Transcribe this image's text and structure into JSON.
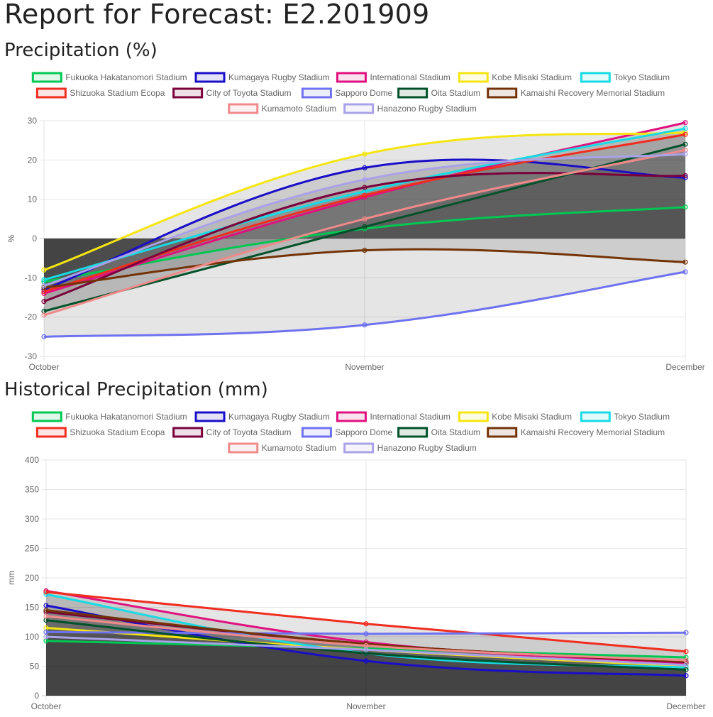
{
  "report": {
    "title": "Report for Forecast: E2.201909",
    "section1_title": "Precipitation (%)",
    "section2_title": "Historical Precipitation (mm)"
  },
  "chart_data": [
    {
      "type": "line",
      "fill": true,
      "categories": [
        "October",
        "November",
        "December"
      ],
      "ylabel": "%",
      "ylim": [
        -30,
        30
      ],
      "yticks": [
        30,
        20,
        10,
        0,
        -10,
        -20,
        -30
      ],
      "grid": true,
      "legend_position": "top",
      "series": [
        {
          "name": "Fukuoka Hakatanomori Stadium",
          "color": "#00c853",
          "values": [
            -11,
            2.5,
            8
          ]
        },
        {
          "name": "Kumagaya Rugby Stadium",
          "color": "#1a0dc7",
          "values": [
            -13,
            18,
            15.5
          ]
        },
        {
          "name": "International Stadium",
          "color": "#e0117f",
          "values": [
            -14,
            10.5,
            29.5
          ]
        },
        {
          "name": "Kobe Misaki Stadium",
          "color": "#f5e611",
          "values": [
            -8,
            21.5,
            27
          ]
        },
        {
          "name": "Tokyo Stadium",
          "color": "#17dbe4",
          "values": [
            -10.5,
            12,
            28
          ]
        },
        {
          "name": "Shizuoka Stadium Ecopa",
          "color": "#f02d1f",
          "values": [
            -13.5,
            11,
            26.5
          ]
        },
        {
          "name": "City of Toyota Stadium",
          "color": "#7a003c",
          "values": [
            -16,
            13,
            16
          ]
        },
        {
          "name": "Sapporo Dome",
          "color": "#6f72f0",
          "values": [
            -25,
            -22,
            -8.5
          ]
        },
        {
          "name": "Oita Stadium",
          "color": "#00512a",
          "values": [
            -18.5,
            3,
            24
          ]
        },
        {
          "name": "Kamaishi Recovery Memorial Stadium",
          "color": "#733306",
          "values": [
            -12.5,
            -3,
            -6
          ]
        },
        {
          "name": "Kumamoto Stadium",
          "color": "#f08a8a",
          "values": [
            -19.5,
            5,
            22.5
          ]
        },
        {
          "name": "Hanazono Rugby Stadium",
          "color": "#aaa2e8",
          "values": [
            -12,
            15,
            21.5
          ]
        }
      ]
    },
    {
      "type": "line",
      "fill": true,
      "categories": [
        "October",
        "November",
        "December"
      ],
      "ylabel": "mm",
      "ylim": [
        0,
        400
      ],
      "yticks": [
        400,
        350,
        300,
        250,
        200,
        150,
        100,
        50,
        0
      ],
      "grid": true,
      "legend_position": "top",
      "series": [
        {
          "name": "Fukuoka Hakatanomori Stadium",
          "color": "#00c853",
          "values": [
            93,
            80,
            65
          ]
        },
        {
          "name": "Kumagaya Rugby Stadium",
          "color": "#1a0dc7",
          "values": [
            153,
            59,
            34
          ]
        },
        {
          "name": "International Stadium",
          "color": "#e0117f",
          "values": [
            178,
            91,
            55
          ]
        },
        {
          "name": "Kobe Misaki Stadium",
          "color": "#f5e611",
          "values": [
            115,
            78,
            50
          ]
        },
        {
          "name": "Tokyo Stadium",
          "color": "#17dbe4",
          "values": [
            172,
            72,
            48
          ]
        },
        {
          "name": "Shizuoka Stadium Ecopa",
          "color": "#f02d1f",
          "values": [
            176,
            122,
            75
          ]
        },
        {
          "name": "City of Toyota Stadium",
          "color": "#7a003c",
          "values": [
            142,
            88,
            57
          ]
        },
        {
          "name": "Sapporo Dome",
          "color": "#6f72f0",
          "values": [
            108,
            105,
            107
          ]
        },
        {
          "name": "Oita Stadium",
          "color": "#00512a",
          "values": [
            128,
            72,
            44
          ]
        },
        {
          "name": "Kamaishi Recovery Memorial Stadium",
          "color": "#733306",
          "values": [
            145,
            88,
            58
          ]
        },
        {
          "name": "Kumamoto Stadium",
          "color": "#f08a8a",
          "values": [
            135,
            85,
            60
          ]
        },
        {
          "name": "Hanazono Rugby Stadium",
          "color": "#aaa2e8",
          "values": [
            100,
            78,
            52
          ]
        }
      ]
    }
  ]
}
